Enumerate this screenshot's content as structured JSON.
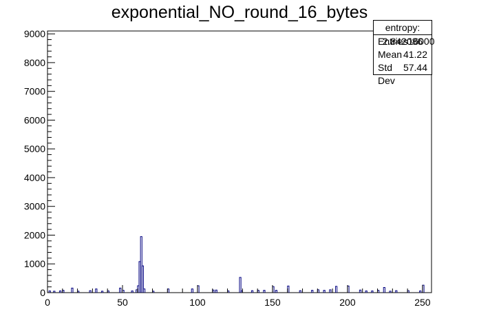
{
  "chart_data": {
    "type": "bar",
    "title": "exponential_NO_round_16_bytes",
    "xlabel": "",
    "ylabel": "",
    "xlim": [
      0,
      256
    ],
    "ylim": [
      0,
      9100
    ],
    "xticks": [
      0,
      50,
      100,
      150,
      200,
      250
    ],
    "yticks": [
      0,
      1000,
      2000,
      3000,
      4000,
      5000,
      6000,
      7000,
      8000,
      9000
    ],
    "line_color": "#000080",
    "stats": {
      "header": "entropy: 2.842086",
      "rows": [
        {
          "label": "Entries",
          "value": "16000"
        },
        {
          "label": "Mean",
          "value": "41.22"
        },
        {
          "label": "Std Dev",
          "value": "57.44"
        }
      ]
    },
    "bins": [
      {
        "x": 1,
        "y": 60
      },
      {
        "x": 4,
        "y": 50
      },
      {
        "x": 8,
        "y": 60
      },
      {
        "x": 10,
        "y": 80
      },
      {
        "x": 16,
        "y": 160
      },
      {
        "x": 20,
        "y": 50
      },
      {
        "x": 28,
        "y": 70
      },
      {
        "x": 32,
        "y": 130
      },
      {
        "x": 36,
        "y": 50
      },
      {
        "x": 40,
        "y": 60
      },
      {
        "x": 48,
        "y": 160
      },
      {
        "x": 50,
        "y": 80
      },
      {
        "x": 56,
        "y": 60
      },
      {
        "x": 59,
        "y": 100
      },
      {
        "x": 60,
        "y": 240
      },
      {
        "x": 61,
        "y": 1080
      },
      {
        "x": 62,
        "y": 1950
      },
      {
        "x": 63,
        "y": 930
      },
      {
        "x": 64,
        "y": 130
      },
      {
        "x": 70,
        "y": 50
      },
      {
        "x": 80,
        "y": 130
      },
      {
        "x": 96,
        "y": 130
      },
      {
        "x": 100,
        "y": 240
      },
      {
        "x": 110,
        "y": 90
      },
      {
        "x": 112,
        "y": 90
      },
      {
        "x": 120,
        "y": 60
      },
      {
        "x": 128,
        "y": 530
      },
      {
        "x": 129,
        "y": 60
      },
      {
        "x": 136,
        "y": 70
      },
      {
        "x": 140,
        "y": 80
      },
      {
        "x": 144,
        "y": 80
      },
      {
        "x": 150,
        "y": 210
      },
      {
        "x": 152,
        "y": 80
      },
      {
        "x": 160,
        "y": 230
      },
      {
        "x": 168,
        "y": 70
      },
      {
        "x": 176,
        "y": 80
      },
      {
        "x": 180,
        "y": 100
      },
      {
        "x": 184,
        "y": 80
      },
      {
        "x": 188,
        "y": 100
      },
      {
        "x": 192,
        "y": 220
      },
      {
        "x": 200,
        "y": 230
      },
      {
        "x": 208,
        "y": 90
      },
      {
        "x": 212,
        "y": 60
      },
      {
        "x": 216,
        "y": 60
      },
      {
        "x": 220,
        "y": 80
      },
      {
        "x": 224,
        "y": 180
      },
      {
        "x": 228,
        "y": 50
      },
      {
        "x": 232,
        "y": 70
      },
      {
        "x": 240,
        "y": 70
      },
      {
        "x": 248,
        "y": 60
      },
      {
        "x": 250,
        "y": 260
      }
    ]
  }
}
